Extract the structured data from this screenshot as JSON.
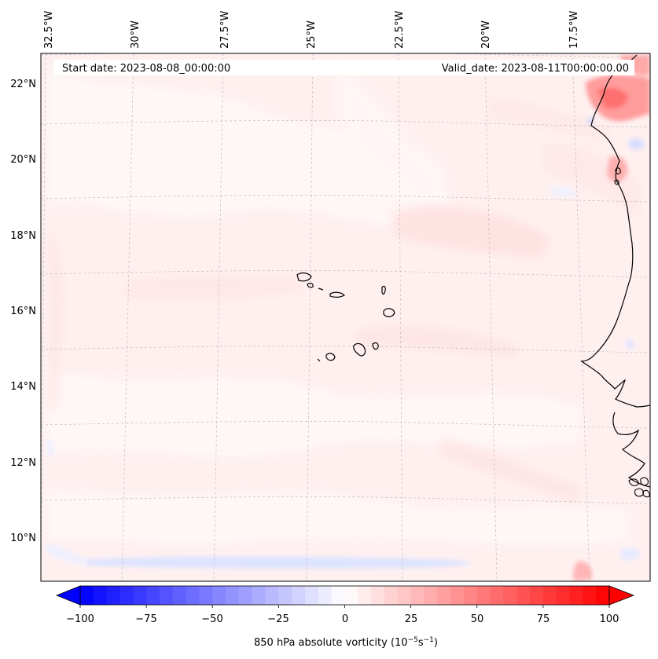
{
  "header": {
    "start_date": "Start date: 2023-08-08_00:00:00",
    "valid_date": "Valid_date: 2023-08-11T00:00:00.00"
  },
  "map": {
    "longitude_labels": [
      "32.5°W",
      "30°W",
      "27.5°W",
      "25°W",
      "22.5°W",
      "20°W",
      "17.5°W"
    ],
    "latitude_labels": [
      "22°N",
      "20°N",
      "18°N",
      "16°N",
      "14°N",
      "12°N",
      "10°N"
    ],
    "longitude_values": [
      -32.5,
      -30,
      -27.5,
      -25,
      -22.5,
      -20,
      -17.5
    ],
    "latitude_values": [
      22,
      20,
      18,
      16,
      14,
      12,
      10
    ],
    "field": "850 hPa absolute vorticity",
    "features": [
      "Cabo Verde islands",
      "West African coastline"
    ]
  },
  "colorbar": {
    "label_main": "850 hPa absolute vorticity (10",
    "label_sup1": "−5",
    "label_mid": "s",
    "label_sup2": "−1",
    "label_end": ")",
    "tick_labels": [
      "−100",
      "−75",
      "−50",
      "−25",
      "0",
      "25",
      "50",
      "75",
      "100"
    ],
    "tick_values": [
      -100,
      -75,
      -50,
      -25,
      0,
      25,
      50,
      75,
      100
    ],
    "min": -100,
    "max": 100,
    "step": 5,
    "colormap": "bwr"
  },
  "colors": {
    "negative_end": "#0000ff",
    "neutral": "#ffffff",
    "positive_end": "#ff0000",
    "coastline": "#000000",
    "gridline": "#b0b0b0"
  }
}
